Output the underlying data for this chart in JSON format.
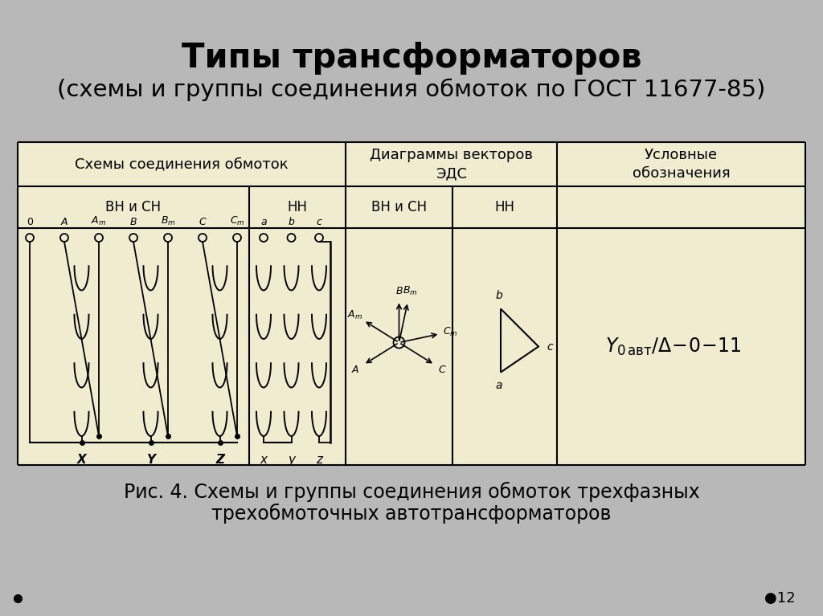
{
  "title": "Типы трансформаторов",
  "subtitle": "(схемы и группы соединения обмоток по ГОСТ 11677-85)",
  "caption_line1": "Рис. 4. Схемы и группы соединения обмоток трехфазных",
  "caption_line2": "трехобмоточных автотрансформаторов",
  "slide_number": "12",
  "background_color": "#b8b8b8",
  "table_bg": "#f0ecd0",
  "title_fontsize": 30,
  "subtitle_fontsize": 21,
  "caption_fontsize": 17,
  "header1": "Схемы соединения обмоток",
  "header2": "Диаграммы векторов\nЭДС",
  "header3": "Условные\nобозначения",
  "sub_vn_sn": "ВН и СН",
  "sub_nn": "НН",
  "sub_vn_sn2": "ВН и СН",
  "sub_nn2": "НН"
}
